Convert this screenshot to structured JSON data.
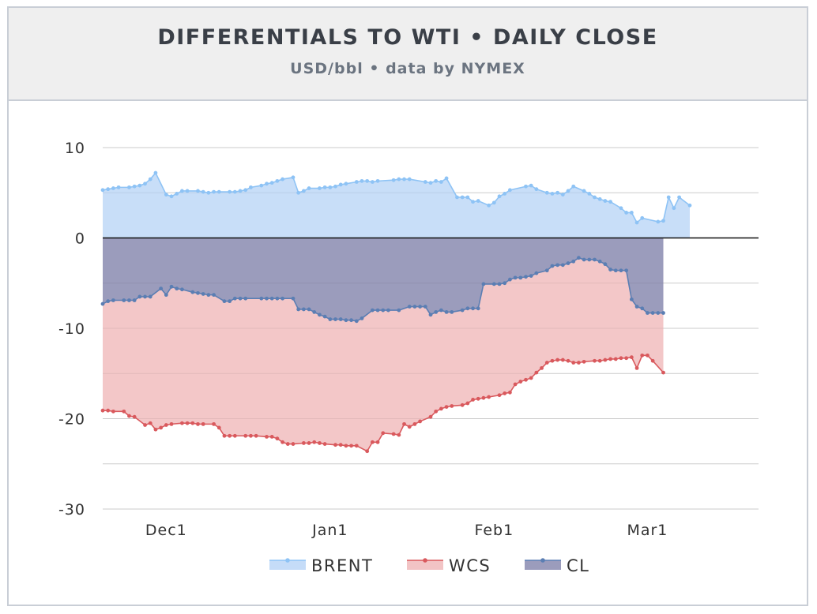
{
  "chart_data": {
    "type": "area",
    "title": "DIFFERENTIALS TO WTI • DAILY CLOSE",
    "subtitle": "USD/bbl • data by NYMEX",
    "xlabel": "",
    "ylabel": "",
    "ylim": [
      -30,
      10
    ],
    "yticks": [
      10,
      0,
      -10,
      -20,
      -30
    ],
    "xticks": [
      {
        "label": "Dec1",
        "day": 6
      },
      {
        "label": "Jan1",
        "day": 37
      },
      {
        "label": "Feb1",
        "day": 68
      },
      {
        "label": "Mar1",
        "day": 97
      }
    ],
    "xlim": [
      -6,
      118
    ],
    "legend_position": "bottom-center",
    "series": [
      {
        "name": "BRENT",
        "color": "#8ec3f5",
        "fill": "#c5dcf8",
        "points": [
          [
            -6,
            5.3
          ],
          [
            -5,
            5.4
          ],
          [
            -4,
            5.5
          ],
          [
            -3,
            5.6
          ],
          [
            -1,
            5.6
          ],
          [
            0,
            5.7
          ],
          [
            1,
            5.8
          ],
          [
            2,
            6.0
          ],
          [
            3,
            6.5
          ],
          [
            4,
            7.2
          ],
          [
            6,
            4.8
          ],
          [
            7,
            4.6
          ],
          [
            8,
            4.9
          ],
          [
            9,
            5.2
          ],
          [
            10,
            5.2
          ],
          [
            12,
            5.2
          ],
          [
            13,
            5.1
          ],
          [
            14,
            5.0
          ],
          [
            15,
            5.1
          ],
          [
            16,
            5.1
          ],
          [
            18,
            5.1
          ],
          [
            19,
            5.1
          ],
          [
            20,
            5.2
          ],
          [
            21,
            5.3
          ],
          [
            22,
            5.6
          ],
          [
            24,
            5.8
          ],
          [
            25,
            6.0
          ],
          [
            26,
            6.1
          ],
          [
            27,
            6.3
          ],
          [
            28,
            6.5
          ],
          [
            30,
            6.7
          ],
          [
            31,
            5.0
          ],
          [
            32,
            5.2
          ],
          [
            33,
            5.5
          ],
          [
            35,
            5.5
          ],
          [
            36,
            5.6
          ],
          [
            37,
            5.6
          ],
          [
            38,
            5.7
          ],
          [
            39,
            5.9
          ],
          [
            40,
            6.0
          ],
          [
            42,
            6.2
          ],
          [
            43,
            6.3
          ],
          [
            44,
            6.3
          ],
          [
            45,
            6.2
          ],
          [
            46,
            6.3
          ],
          [
            49,
            6.4
          ],
          [
            50,
            6.5
          ],
          [
            51,
            6.5
          ],
          [
            52,
            6.5
          ],
          [
            55,
            6.2
          ],
          [
            56,
            6.1
          ],
          [
            57,
            6.3
          ],
          [
            58,
            6.2
          ],
          [
            59,
            6.6
          ],
          [
            61,
            4.5
          ],
          [
            62,
            4.5
          ],
          [
            63,
            4.5
          ],
          [
            64,
            4.0
          ],
          [
            65,
            4.1
          ],
          [
            67,
            3.6
          ],
          [
            68,
            3.9
          ],
          [
            69,
            4.6
          ],
          [
            70,
            4.9
          ],
          [
            71,
            5.3
          ],
          [
            74,
            5.7
          ],
          [
            75,
            5.8
          ],
          [
            76,
            5.4
          ],
          [
            78,
            5.0
          ],
          [
            79,
            4.9
          ],
          [
            80,
            5.0
          ],
          [
            81,
            4.8
          ],
          [
            82,
            5.2
          ],
          [
            83,
            5.7
          ],
          [
            85,
            5.2
          ],
          [
            86,
            4.9
          ],
          [
            87,
            4.5
          ],
          [
            88,
            4.3
          ],
          [
            89,
            4.1
          ],
          [
            90,
            4.0
          ],
          [
            92,
            3.3
          ],
          [
            93,
            2.8
          ],
          [
            94,
            2.8
          ],
          [
            95,
            1.7
          ],
          [
            96,
            2.2
          ],
          [
            99,
            1.8
          ],
          [
            100,
            1.9
          ],
          [
            101,
            4.5
          ],
          [
            102,
            3.3
          ],
          [
            103,
            4.5
          ],
          [
            105,
            3.6
          ]
        ]
      },
      {
        "name": "CL",
        "color": "#5b7eb3",
        "fill": "#9b9cbc",
        "points": [
          [
            -6,
            -7.3
          ],
          [
            -5,
            -7.0
          ],
          [
            -4,
            -6.9
          ],
          [
            -2,
            -6.9
          ],
          [
            -1,
            -6.9
          ],
          [
            0,
            -6.9
          ],
          [
            1,
            -6.5
          ],
          [
            2,
            -6.5
          ],
          [
            3,
            -6.5
          ],
          [
            5,
            -5.6
          ],
          [
            6,
            -6.3
          ],
          [
            7,
            -5.4
          ],
          [
            8,
            -5.6
          ],
          [
            9,
            -5.7
          ],
          [
            11,
            -6.0
          ],
          [
            12,
            -6.1
          ],
          [
            13,
            -6.2
          ],
          [
            14,
            -6.3
          ],
          [
            15,
            -6.3
          ],
          [
            17,
            -7.0
          ],
          [
            18,
            -7.0
          ],
          [
            19,
            -6.7
          ],
          [
            20,
            -6.7
          ],
          [
            21,
            -6.7
          ],
          [
            24,
            -6.7
          ],
          [
            25,
            -6.7
          ],
          [
            26,
            -6.7
          ],
          [
            27,
            -6.7
          ],
          [
            28,
            -6.7
          ],
          [
            30,
            -6.7
          ],
          [
            31,
            -7.9
          ],
          [
            32,
            -7.9
          ],
          [
            33,
            -7.9
          ],
          [
            34,
            -8.2
          ],
          [
            35,
            -8.5
          ],
          [
            36,
            -8.7
          ],
          [
            37,
            -9.0
          ],
          [
            38,
            -9.0
          ],
          [
            39,
            -9.0
          ],
          [
            40,
            -9.1
          ],
          [
            41,
            -9.1
          ],
          [
            42,
            -9.2
          ],
          [
            43,
            -8.9
          ],
          [
            45,
            -8.0
          ],
          [
            46,
            -8.0
          ],
          [
            47,
            -8.0
          ],
          [
            48,
            -8.0
          ],
          [
            50,
            -8.0
          ],
          [
            52,
            -7.6
          ],
          [
            53,
            -7.6
          ],
          [
            54,
            -7.6
          ],
          [
            55,
            -7.6
          ],
          [
            56,
            -8.5
          ],
          [
            57,
            -8.2
          ],
          [
            58,
            -8.0
          ],
          [
            59,
            -8.2
          ],
          [
            60,
            -8.2
          ],
          [
            62,
            -8.0
          ],
          [
            63,
            -7.8
          ],
          [
            64,
            -7.8
          ],
          [
            65,
            -7.8
          ],
          [
            66,
            -5.1
          ],
          [
            68,
            -5.1
          ],
          [
            69,
            -5.1
          ],
          [
            70,
            -5.0
          ],
          [
            71,
            -4.6
          ],
          [
            72,
            -4.4
          ],
          [
            73,
            -4.4
          ],
          [
            74,
            -4.3
          ],
          [
            75,
            -4.2
          ],
          [
            76,
            -3.9
          ],
          [
            78,
            -3.6
          ],
          [
            79,
            -3.1
          ],
          [
            80,
            -3.0
          ],
          [
            81,
            -3.0
          ],
          [
            82,
            -2.8
          ],
          [
            83,
            -2.6
          ],
          [
            84,
            -2.2
          ],
          [
            85,
            -2.4
          ],
          [
            86,
            -2.4
          ],
          [
            87,
            -2.4
          ],
          [
            88,
            -2.6
          ],
          [
            89,
            -2.9
          ],
          [
            90,
            -3.5
          ],
          [
            91,
            -3.6
          ],
          [
            92,
            -3.6
          ],
          [
            93,
            -3.6
          ],
          [
            94,
            -6.8
          ],
          [
            95,
            -7.6
          ],
          [
            96,
            -7.8
          ],
          [
            97,
            -8.3
          ],
          [
            98,
            -8.3
          ],
          [
            99,
            -8.3
          ],
          [
            100,
            -8.3
          ]
        ]
      },
      {
        "name": "WCS",
        "color": "#d9595d",
        "fill": "#f2c4c5",
        "points": [
          [
            -6,
            -19.1
          ],
          [
            -5,
            -19.1
          ],
          [
            -4,
            -19.2
          ],
          [
            -2,
            -19.2
          ],
          [
            -1,
            -19.7
          ],
          [
            0,
            -19.8
          ],
          [
            2,
            -20.7
          ],
          [
            3,
            -20.5
          ],
          [
            4,
            -21.2
          ],
          [
            5,
            -21.0
          ],
          [
            6,
            -20.7
          ],
          [
            7,
            -20.6
          ],
          [
            9,
            -20.5
          ],
          [
            10,
            -20.5
          ],
          [
            11,
            -20.5
          ],
          [
            12,
            -20.6
          ],
          [
            13,
            -20.6
          ],
          [
            15,
            -20.6
          ],
          [
            16,
            -21.0
          ],
          [
            17,
            -21.9
          ],
          [
            18,
            -21.9
          ],
          [
            19,
            -21.9
          ],
          [
            21,
            -21.9
          ],
          [
            22,
            -21.9
          ],
          [
            23,
            -21.9
          ],
          [
            25,
            -22.0
          ],
          [
            26,
            -22.0
          ],
          [
            27,
            -22.2
          ],
          [
            28,
            -22.6
          ],
          [
            29,
            -22.8
          ],
          [
            30,
            -22.8
          ],
          [
            32,
            -22.7
          ],
          [
            33,
            -22.7
          ],
          [
            34,
            -22.6
          ],
          [
            35,
            -22.7
          ],
          [
            36,
            -22.8
          ],
          [
            38,
            -22.9
          ],
          [
            39,
            -22.9
          ],
          [
            40,
            -23.0
          ],
          [
            41,
            -23.0
          ],
          [
            42,
            -23.0
          ],
          [
            44,
            -23.6
          ],
          [
            45,
            -22.6
          ],
          [
            46,
            -22.6
          ],
          [
            47,
            -21.6
          ],
          [
            49,
            -21.7
          ],
          [
            50,
            -21.8
          ],
          [
            51,
            -20.6
          ],
          [
            52,
            -20.9
          ],
          [
            53,
            -20.6
          ],
          [
            54,
            -20.3
          ],
          [
            56,
            -19.8
          ],
          [
            57,
            -19.2
          ],
          [
            58,
            -18.9
          ],
          [
            59,
            -18.7
          ],
          [
            60,
            -18.6
          ],
          [
            62,
            -18.5
          ],
          [
            63,
            -18.3
          ],
          [
            64,
            -17.9
          ],
          [
            65,
            -17.8
          ],
          [
            66,
            -17.7
          ],
          [
            67,
            -17.6
          ],
          [
            69,
            -17.4
          ],
          [
            70,
            -17.2
          ],
          [
            71,
            -17.1
          ],
          [
            72,
            -16.2
          ],
          [
            73,
            -15.9
          ],
          [
            74,
            -15.7
          ],
          [
            75,
            -15.5
          ],
          [
            76,
            -14.9
          ],
          [
            77,
            -14.4
          ],
          [
            78,
            -13.8
          ],
          [
            79,
            -13.6
          ],
          [
            80,
            -13.5
          ],
          [
            81,
            -13.5
          ],
          [
            82,
            -13.6
          ],
          [
            83,
            -13.8
          ],
          [
            84,
            -13.8
          ],
          [
            85,
            -13.7
          ],
          [
            87,
            -13.6
          ],
          [
            88,
            -13.6
          ],
          [
            89,
            -13.5
          ],
          [
            90,
            -13.4
          ],
          [
            91,
            -13.4
          ],
          [
            92,
            -13.3
          ],
          [
            93,
            -13.3
          ],
          [
            94,
            -13.2
          ],
          [
            95,
            -14.4
          ],
          [
            96,
            -13.0
          ],
          [
            97,
            -13.0
          ],
          [
            98,
            -13.6
          ],
          [
            100,
            -14.9
          ]
        ]
      }
    ]
  }
}
